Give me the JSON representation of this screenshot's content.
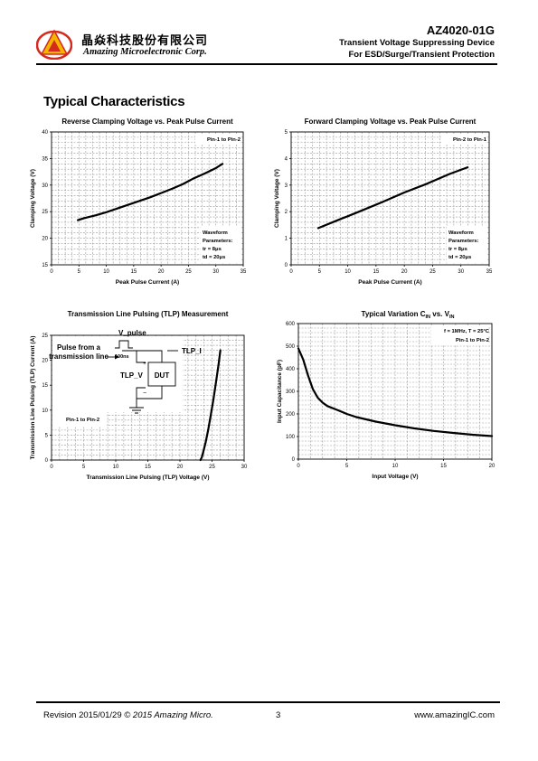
{
  "header": {
    "logo_cn": "晶焱科技股份有限公司",
    "logo_en": "Amazing Microelectronic Corp.",
    "part_number": "AZ4020-01G",
    "subtitle_1": "Transient Voltage Suppressing Device",
    "subtitle_2": "For ESD/Surge/Transient Protection"
  },
  "section_title": "Typical Characteristics",
  "colors": {
    "curve": "#000000",
    "grid": "#999999",
    "logo_red": "#d42a1f",
    "logo_yellow": "#f4b400"
  },
  "chart_data": [
    {
      "id": "reverse",
      "type": "line",
      "title": "Reverse Clamping Voltage vs. Peak Pulse Current",
      "xlabel": "Peak Pulse Current (A)",
      "ylabel": "Clamping Voltage (V)",
      "xlim": [
        0,
        35
      ],
      "ylim": [
        15,
        40
      ],
      "xticks": [
        0,
        5,
        10,
        15,
        20,
        25,
        30,
        35
      ],
      "yticks": [
        15,
        20,
        25,
        30,
        35,
        40
      ],
      "grid": true,
      "annotations": [
        "Pin-1 to Pin-2",
        "Waveform",
        "Parameters:",
        "tr = 8μs",
        "td = 20μs"
      ],
      "x": [
        4.8,
        6,
        8,
        10,
        12,
        14,
        16,
        18,
        20,
        22,
        24,
        26,
        28,
        30,
        31.2
      ],
      "y": [
        23.4,
        23.8,
        24.3,
        24.9,
        25.6,
        26.3,
        27.0,
        27.7,
        28.5,
        29.3,
        30.2,
        31.3,
        32.2,
        33.2,
        34.0
      ]
    },
    {
      "id": "forward",
      "type": "line",
      "title": "Forward Clamping Voltage vs. Peak Pulse Current",
      "xlabel": "Peak Pulse Current (A)",
      "ylabel": "Clamping Voltage (V)",
      "xlim": [
        0,
        35
      ],
      "ylim": [
        0,
        5
      ],
      "xticks": [
        0,
        5,
        10,
        15,
        20,
        25,
        30,
        35
      ],
      "yticks": [
        0,
        1,
        2,
        3,
        4,
        5
      ],
      "grid": true,
      "annotations": [
        "Pin-2 to Pin-1",
        "Waveform",
        "Parameters:",
        "tr = 8μs",
        "td = 20μs"
      ],
      "x": [
        4.8,
        8,
        12,
        16,
        20,
        24,
        28,
        31.2
      ],
      "y": [
        1.38,
        1.66,
        2.0,
        2.35,
        2.72,
        3.05,
        3.42,
        3.67
      ]
    },
    {
      "id": "tlp",
      "type": "line",
      "title": "Transmission Line Pulsing (TLP) Measurement",
      "xlabel": "Transmission Line Pulsing (TLP) Voltage (V)",
      "ylabel": "Transmission Line Pulsing (TLP) Current (A)",
      "xlim": [
        0,
        30
      ],
      "ylim": [
        0,
        25
      ],
      "xticks": [
        0,
        5,
        10,
        15,
        20,
        25,
        30
      ],
      "yticks": [
        0,
        5,
        10,
        15,
        20,
        25
      ],
      "grid": true,
      "annotations": [
        "Pulse from a",
        "transmission line",
        "V_pulse",
        "100ns",
        "TLP_I",
        "TLP_V",
        "DUT",
        "+",
        "−",
        "Pin-1 to Pin-2"
      ],
      "x": [
        23.2,
        23.4,
        23.6,
        23.8,
        24.0,
        24.4,
        24.8,
        25.2,
        25.6,
        26.0,
        26.3
      ],
      "y": [
        0,
        0.5,
        1.5,
        2.5,
        3.5,
        6.0,
        9.0,
        12.0,
        15.5,
        19.0,
        22.0
      ]
    },
    {
      "id": "cap",
      "type": "line",
      "title_main": "Typical Variation C",
      "title_sub1": "IN",
      "title_mid": " vs. V",
      "title_sub2": "IN",
      "xlabel": "Input Voltage (V)",
      "ylabel": "Input Capacitance (pF)",
      "xlim": [
        0,
        20
      ],
      "ylim": [
        0,
        600
      ],
      "xticks": [
        0,
        5,
        10,
        15,
        20
      ],
      "yticks": [
        0,
        100,
        200,
        300,
        400,
        500,
        600
      ],
      "grid": true,
      "annotations": [
        "f = 1MHz, T = 25°C",
        "Pin-1 to Pin-2"
      ],
      "x": [
        0,
        0.5,
        1,
        1.5,
        2,
        2.5,
        3,
        4,
        5,
        6,
        7,
        8,
        10,
        12,
        14,
        16,
        18,
        20
      ],
      "y": [
        490,
        440,
        370,
        310,
        272,
        250,
        235,
        218,
        200,
        186,
        176,
        166,
        150,
        136,
        125,
        116,
        108,
        102
      ]
    }
  ],
  "footer": {
    "revision": "Revision 2015/01/29",
    "copyright": "© 2015 Amazing Micro.",
    "page": "3",
    "website": "www.amazingIC.com"
  }
}
